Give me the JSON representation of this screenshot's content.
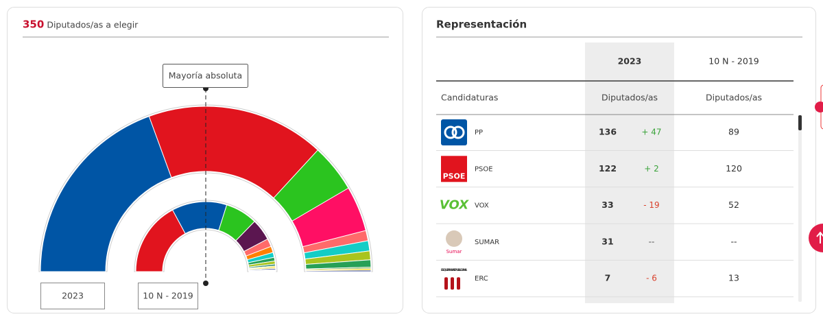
{
  "header": {
    "count": "350",
    "label": "Diputados/as a elegir"
  },
  "majority_label": "Mayoría absoluta",
  "hemicycle": {
    "outer": {
      "label": "2023",
      "seats": [
        136,
        122,
        33,
        31,
        7,
        7,
        6,
        5,
        1,
        1,
        1
      ],
      "colors": [
        "#0055a5",
        "#e1141e",
        "#2bc41f",
        "#ff0f64",
        "#ff6a6a",
        "#13cdc6",
        "#a9c41e",
        "#27a056",
        "#5ea33b",
        "#ffd700",
        "#2b3d8c"
      ]
    },
    "inner": {
      "label": "10 N - 2019",
      "seats": [
        120,
        89,
        52,
        35,
        13,
        10,
        8,
        6,
        5,
        3,
        2,
        2,
        2,
        1,
        1,
        1
      ],
      "colors": [
        "#e1141e",
        "#0055a5",
        "#2bc41f",
        "#5b1650",
        "#ff6a6a",
        "#ff7f00",
        "#13cdc6",
        "#27a056",
        "#a9c41e",
        "#2e8b7a",
        "#ffdb1b",
        "#ffd700",
        "#2b3d8c",
        "#7fb8e0",
        "#76b82a",
        "#3f8f5f"
      ]
    }
  },
  "table": {
    "title": "Representación",
    "columns": [
      "2023",
      "10 N - 2019"
    ],
    "subheaders": [
      "Candidaturas",
      "Diputados/as",
      "Diputados/as"
    ],
    "rows": [
      {
        "party": "PP",
        "seats": 136,
        "change": "+ 47",
        "prev": 89
      },
      {
        "party": "PSOE",
        "logo": "PSOE",
        "seats": 122,
        "change": "+ 2",
        "prev": 120
      },
      {
        "party": "VOX",
        "logo": "VOX",
        "seats": 33,
        "change": "- 19",
        "prev": 52
      },
      {
        "party": "SUMAR",
        "logo": "Sumar",
        "seats": 31,
        "change": "--",
        "prev": "--"
      },
      {
        "party": "ERC",
        "logo": "ESQUERRA REPUBLICANA",
        "seats": 7,
        "change": "- 6",
        "prev": 13
      }
    ]
  }
}
